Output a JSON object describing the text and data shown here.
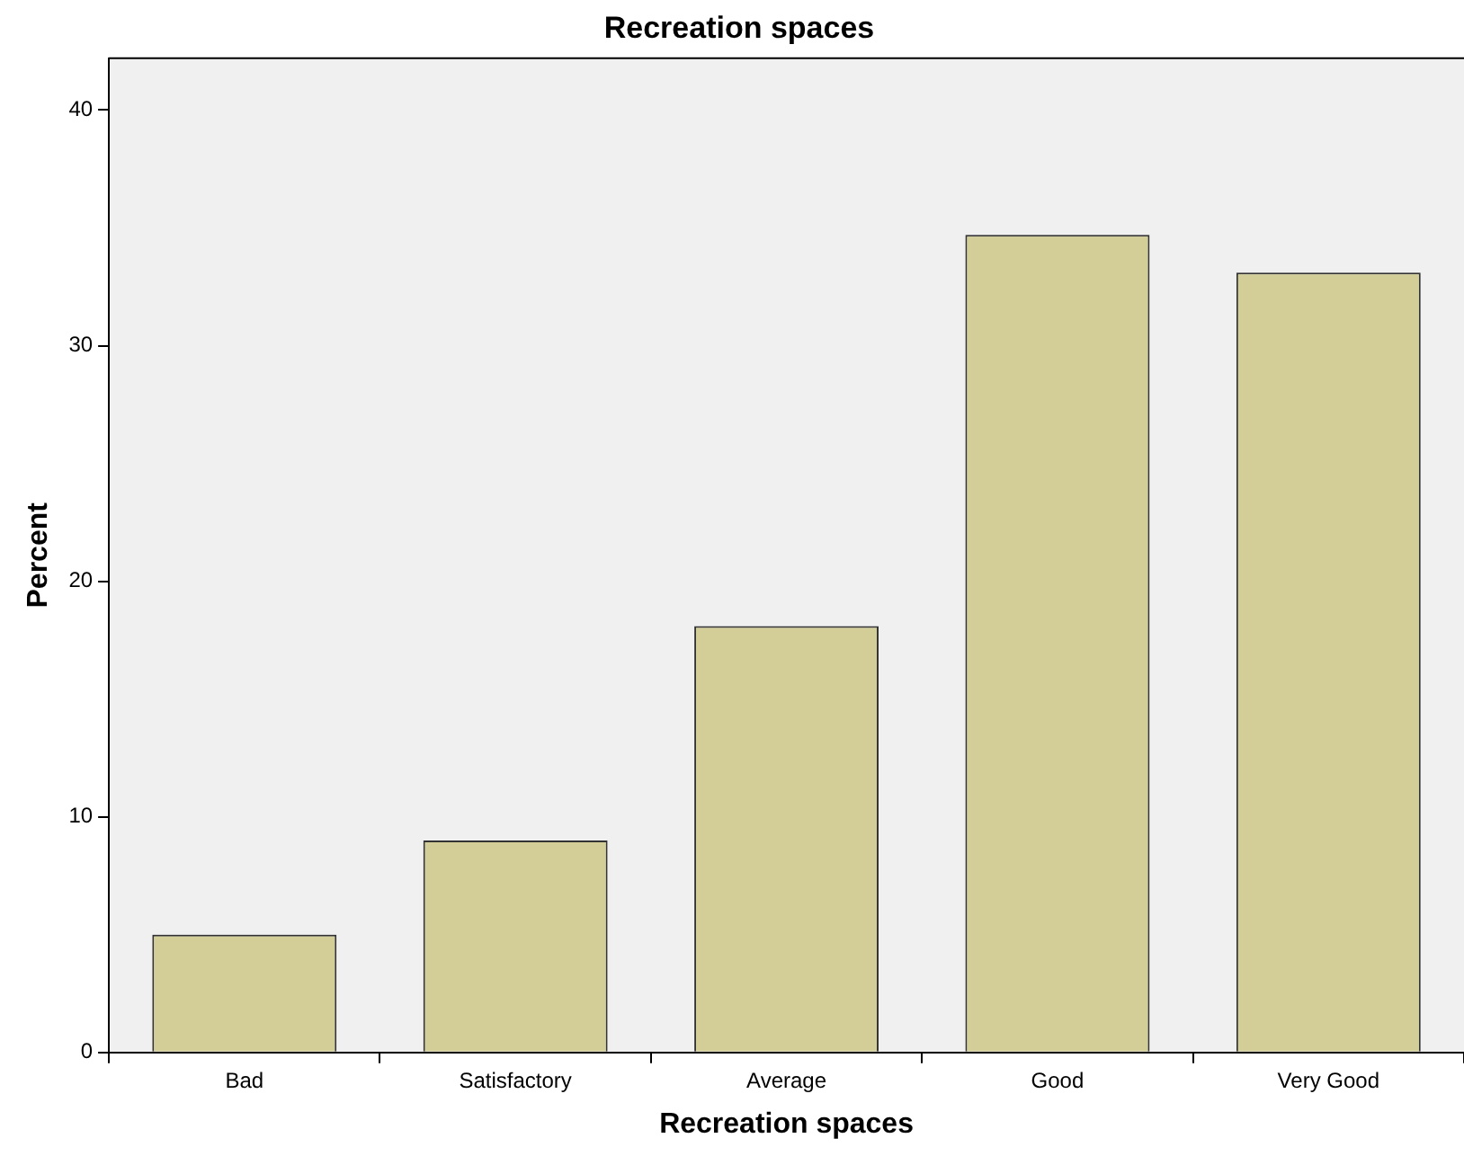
{
  "chart_data": {
    "type": "bar",
    "title": "Recreation spaces",
    "xlabel": "Recreation spaces",
    "ylabel": "Percent",
    "categories": [
      "Bad",
      "Satisfactory",
      "Average",
      "Good",
      "Very Good"
    ],
    "values": [
      5.0,
      9.0,
      18.1,
      34.7,
      33.1
    ],
    "color": "#d3ce97",
    "ylim": [
      0,
      42.2
    ],
    "yticks": [
      0,
      10,
      20,
      30,
      40
    ],
    "grid": false,
    "legend": false
  }
}
